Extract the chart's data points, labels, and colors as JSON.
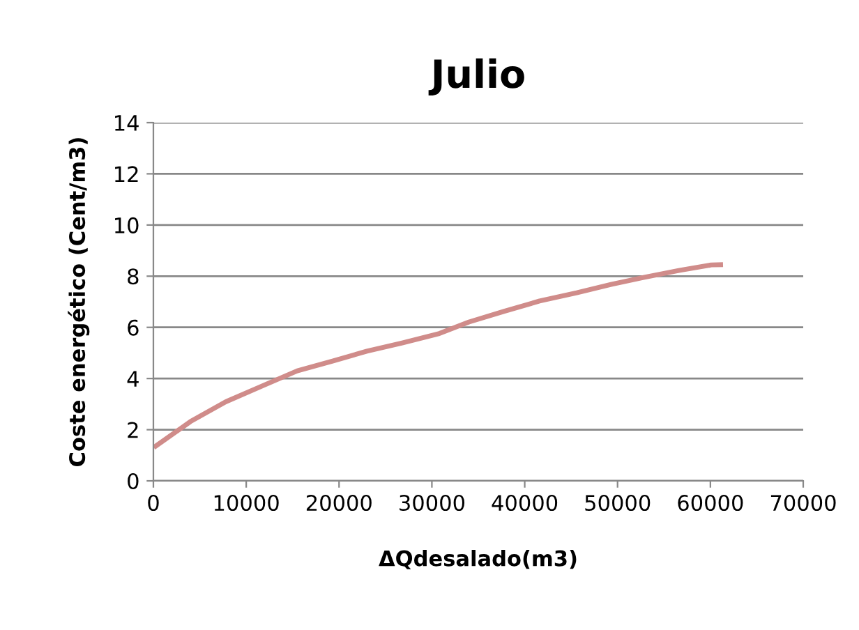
{
  "chart_data": {
    "type": "line",
    "title": "Julio",
    "xlabel": "ΔQdesalado(m3)",
    "ylabel": "Coste energético (Cent/m3)",
    "series": [
      {
        "color": "#d08c8a",
        "x": [
          250,
          4000,
          7800,
          11800,
          15500,
          19300,
          23000,
          26800,
          30800,
          34000,
          37800,
          41600,
          45600,
          49300,
          52800,
          56600,
          60100,
          61100
        ],
        "values": [
          1.36,
          2.32,
          3.09,
          3.72,
          4.3,
          4.68,
          5.07,
          5.39,
          5.76,
          6.21,
          6.63,
          7.03,
          7.35,
          7.68,
          7.95,
          8.22,
          8.44,
          8.45
        ]
      }
    ],
    "xlim": [
      0,
      70000
    ],
    "xticks": [
      0,
      10000,
      20000,
      30000,
      40000,
      50000,
      60000,
      70000
    ],
    "ylim": [
      0,
      14
    ],
    "yticks": [
      0,
      2,
      4,
      6,
      8,
      10,
      12,
      14
    ],
    "grid": "y",
    "line_style": "solid",
    "legend": false
  }
}
